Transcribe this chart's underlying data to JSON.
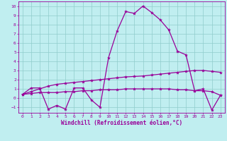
{
  "bg_color": "#c0eef0",
  "grid_color": "#90cccc",
  "line_color": "#990099",
  "marker_size": 3,
  "line_width": 0.9,
  "x_ticks": [
    0,
    1,
    2,
    3,
    4,
    5,
    6,
    7,
    8,
    9,
    10,
    11,
    12,
    13,
    14,
    15,
    16,
    17,
    18,
    19,
    20,
    21,
    22,
    23
  ],
  "y_ticks": [
    -1,
    0,
    1,
    2,
    3,
    4,
    5,
    6,
    7,
    8,
    9,
    10
  ],
  "xlabel": "Windchill (Refroidissement éolien,°C)",
  "xlim": [
    -0.5,
    23.5
  ],
  "ylim": [
    -1.6,
    10.5
  ],
  "line1_x": [
    0,
    1,
    2,
    3,
    4,
    5,
    6,
    7,
    8,
    9,
    10,
    11,
    12,
    13,
    14,
    15,
    16,
    17,
    18,
    19,
    20,
    21,
    22,
    23
  ],
  "line1_y": [
    0.4,
    1.1,
    1.1,
    -1.2,
    -0.8,
    -1.2,
    1.1,
    1.1,
    -0.2,
    -1.0,
    4.4,
    7.3,
    9.4,
    9.2,
    10.0,
    9.3,
    8.5,
    7.4,
    5.1,
    4.7,
    0.8,
    1.0,
    -1.3,
    0.3
  ],
  "line2_x": [
    0,
    1,
    2,
    3,
    4,
    5,
    6,
    7,
    8,
    9,
    10,
    11,
    12,
    13,
    14,
    15,
    16,
    17,
    18,
    19,
    20,
    21,
    22,
    23
  ],
  "line2_y": [
    0.4,
    0.7,
    1.0,
    1.3,
    1.5,
    1.6,
    1.7,
    1.8,
    1.9,
    2.0,
    2.1,
    2.2,
    2.3,
    2.35,
    2.4,
    2.5,
    2.6,
    2.7,
    2.8,
    2.9,
    3.0,
    3.0,
    2.9,
    2.8
  ],
  "line3_x": [
    0,
    1,
    2,
    3,
    4,
    5,
    6,
    7,
    8,
    9,
    10,
    11,
    12,
    13,
    14,
    15,
    16,
    17,
    18,
    19,
    20,
    21,
    22,
    23
  ],
  "line3_y": [
    0.4,
    0.5,
    0.6,
    0.6,
    0.6,
    0.7,
    0.7,
    0.8,
    0.8,
    0.9,
    0.9,
    0.9,
    1.0,
    1.0,
    1.0,
    1.0,
    1.0,
    1.0,
    0.9,
    0.9,
    0.8,
    0.8,
    0.7,
    0.3
  ]
}
